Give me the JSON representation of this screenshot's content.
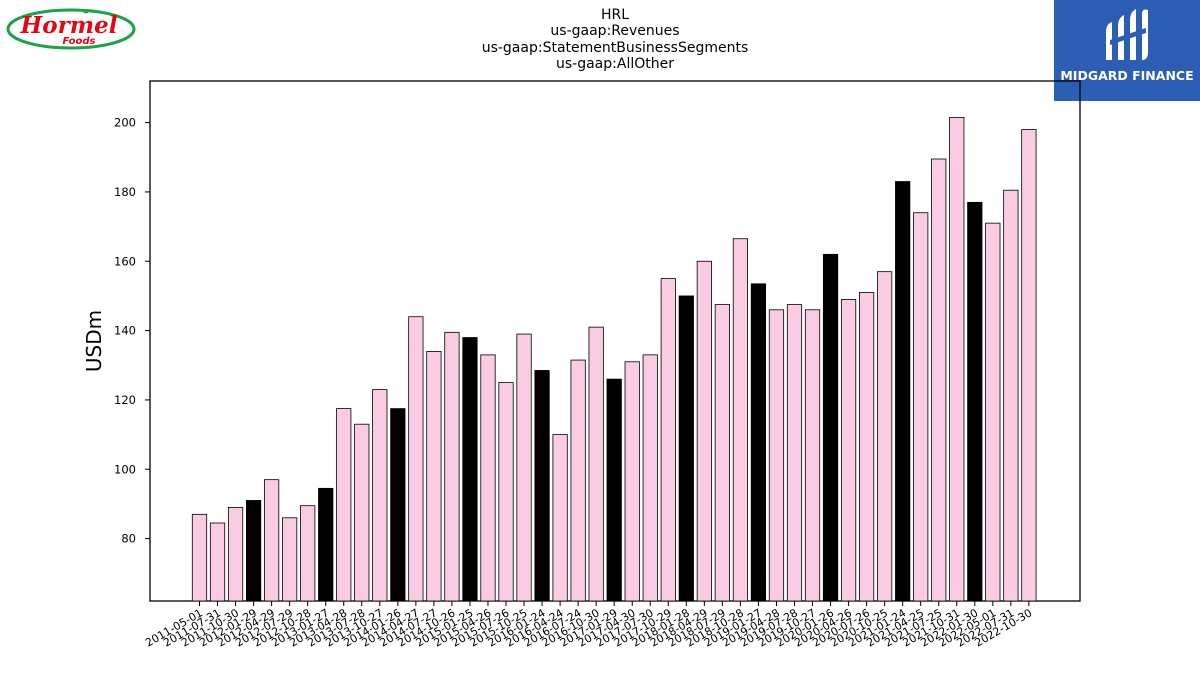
{
  "logos": {
    "left_brand": "Hormel",
    "left_sub": "Foods",
    "right_brand": "MIDGARD FINANCE"
  },
  "colors": {
    "pink": "#f9cce3",
    "black": "#000000",
    "axis": "#000000",
    "logo_red": "#e30613",
    "logo_green": "#1aa34a",
    "logo_blue": "#2c5eb4"
  },
  "chart_data": {
    "type": "bar",
    "title_lines": [
      "HRL",
      "us-gaap:Revenues",
      "us-gaap:StatementBusinessSegments",
      "us-gaap:AllOther"
    ],
    "xlabel": "",
    "ylabel": "USDm",
    "ylim": [
      62,
      212
    ],
    "yticks": [
      80,
      100,
      120,
      140,
      160,
      180,
      200
    ],
    "grid": false,
    "categories": [
      "2011-05-01",
      "2011-07-31",
      "2011-10-30",
      "2012-01-29",
      "2012-04-29",
      "2012-07-29",
      "2012-10-28",
      "2013-01-27",
      "2013-04-28",
      "2013-07-28",
      "2013-10-27",
      "2014-01-26",
      "2014-04-27",
      "2014-07-27",
      "2014-10-26",
      "2015-01-25",
      "2015-04-26",
      "2015-07-26",
      "2015-10-25",
      "2016-01-24",
      "2016-04-24",
      "2016-07-24",
      "2016-10-30",
      "2017-01-29",
      "2017-04-30",
      "2017-07-30",
      "2017-10-29",
      "2018-01-28",
      "2018-04-29",
      "2018-07-29",
      "2018-10-28",
      "2019-01-27",
      "2019-04-28",
      "2019-07-28",
      "2019-10-27",
      "2020-01-26",
      "2020-04-26",
      "2020-07-26",
      "2020-10-25",
      "2021-01-24",
      "2021-04-25",
      "2021-07-25",
      "2021-10-31",
      "2022-01-30",
      "2022-05-01",
      "2022-07-31",
      "2022-10-30"
    ],
    "values": [
      87,
      84.5,
      89,
      91,
      97,
      86,
      89.5,
      94.5,
      117.5,
      113,
      123,
      117.5,
      144,
      134,
      139.5,
      138,
      133,
      125,
      139,
      128.5,
      110,
      131.5,
      141,
      126,
      131,
      133,
      155,
      150,
      160,
      147.5,
      166.5,
      153.5,
      146,
      147.5,
      146,
      162,
      149,
      151,
      157,
      183,
      174,
      189.5,
      201.5,
      177,
      171,
      180.5,
      198
    ],
    "highlight": [
      false,
      false,
      false,
      true,
      false,
      false,
      false,
      true,
      false,
      false,
      false,
      true,
      false,
      false,
      false,
      true,
      false,
      false,
      false,
      true,
      false,
      false,
      false,
      true,
      false,
      false,
      false,
      true,
      false,
      false,
      false,
      true,
      false,
      false,
      false,
      true,
      false,
      false,
      false,
      true,
      false,
      false,
      false,
      true,
      false,
      false,
      false
    ]
  }
}
